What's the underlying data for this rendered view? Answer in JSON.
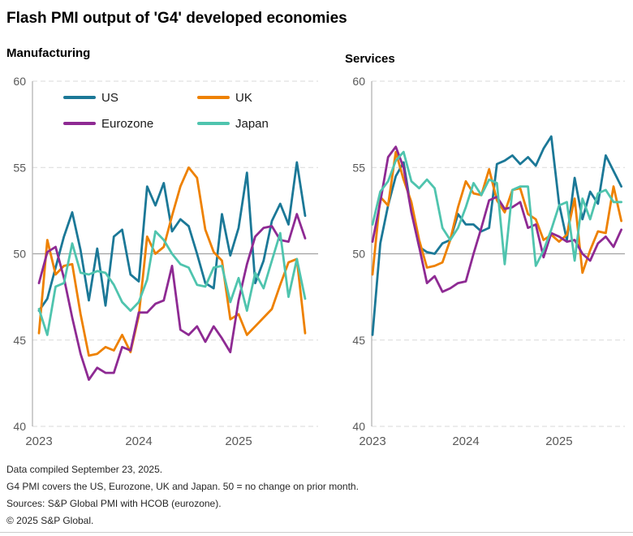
{
  "title": "Flash PMI output of 'G4' developed economies",
  "footer": {
    "line1": "Data compiled September 23, 2025.",
    "line2": "G4 PMI covers the US, Eurozone, UK and Japan. 50 = no change on prior month.",
    "line3": "Sources: S&P Global PMI with HCOB (eurozone).",
    "line4": "© 2025 S&P Global."
  },
  "chart_data": [
    {
      "type": "line",
      "title": "Manufacturing",
      "x_start": "2023-01",
      "frequency": "monthly",
      "x_tick_labels": [
        "2023",
        "2024",
        "2025"
      ],
      "x_tick_months": [
        0,
        12,
        24
      ],
      "ylim": [
        40,
        60
      ],
      "y_ticks": [
        60,
        55,
        50,
        45,
        40
      ],
      "baseline": 50,
      "grid": "dashed-horizontal",
      "legend_position": "top-inside",
      "series": [
        {
          "name": "US",
          "color": "#1b7897",
          "values": [
            46.7,
            47.4,
            49.2,
            51.0,
            52.4,
            50.2,
            47.3,
            50.3,
            47.0,
            51.0,
            51.4,
            48.8,
            48.4,
            53.9,
            52.8,
            54.1,
            51.3,
            52.0,
            51.6,
            50.0,
            48.3,
            48.0,
            52.3,
            49.9,
            51.5,
            54.7,
            48.3,
            49.6,
            51.9,
            52.9,
            51.7,
            55.3,
            52.2
          ]
        },
        {
          "name": "UK",
          "color": "#ee8100",
          "values": [
            45.4,
            50.8,
            48.8,
            49.3,
            49.4,
            46.5,
            44.1,
            44.2,
            44.6,
            44.4,
            45.3,
            44.3,
            46.4,
            51.0,
            50.0,
            50.4,
            52.2,
            53.9,
            55.0,
            54.4,
            51.4,
            50.1,
            49.6,
            46.2,
            46.5,
            45.3,
            45.8,
            46.3,
            46.8,
            48.2,
            49.5,
            49.7,
            45.4
          ]
        },
        {
          "name": "Eurozone",
          "color": "#8e2a93",
          "values": [
            48.3,
            50.1,
            50.4,
            48.6,
            46.3,
            44.2,
            42.7,
            43.4,
            43.1,
            43.1,
            44.6,
            44.4,
            46.6,
            46.6,
            47.1,
            47.3,
            49.3,
            45.6,
            45.3,
            45.8,
            44.9,
            45.8,
            45.1,
            44.3,
            47.3,
            49.4,
            51.0,
            51.5,
            51.6,
            50.8,
            50.7,
            52.3,
            50.9
          ]
        },
        {
          "name": "Japan",
          "color": "#4fc4ae",
          "values": [
            46.8,
            45.3,
            48.1,
            48.3,
            50.6,
            48.9,
            48.8,
            49.0,
            48.9,
            48.2,
            47.2,
            46.7,
            47.2,
            48.5,
            51.3,
            50.8,
            50.0,
            49.4,
            49.2,
            48.2,
            48.1,
            49.2,
            49.3,
            47.2,
            48.6,
            46.7,
            48.9,
            48.0,
            49.6,
            51.2,
            47.5,
            49.7,
            47.4
          ]
        }
      ]
    },
    {
      "type": "line",
      "title": "Services",
      "x_start": "2023-01",
      "frequency": "monthly",
      "x_tick_labels": [
        "2023",
        "2024",
        "2025"
      ],
      "x_tick_months": [
        0,
        12,
        24
      ],
      "ylim": [
        40,
        60
      ],
      "y_ticks": [
        60,
        55,
        50,
        45,
        40
      ],
      "baseline": 50,
      "grid": "dashed-horizontal",
      "legend_position": "none",
      "series": [
        {
          "name": "US",
          "color": "#1b7897",
          "values": [
            45.3,
            50.6,
            52.8,
            54.5,
            55.3,
            52.5,
            50.4,
            50.1,
            50.0,
            50.6,
            50.8,
            52.3,
            51.7,
            51.7,
            51.3,
            51.5,
            55.2,
            55.4,
            55.7,
            55.2,
            55.6,
            55.1,
            56.1,
            56.8,
            52.9,
            50.8,
            54.4,
            52.0,
            53.6,
            52.9,
            55.7,
            54.8,
            53.9
          ]
        },
        {
          "name": "UK",
          "color": "#ee8100",
          "values": [
            48.8,
            53.3,
            52.8,
            55.9,
            54.3,
            53.0,
            50.8,
            49.2,
            49.3,
            49.5,
            50.8,
            52.7,
            54.2,
            53.5,
            53.4,
            54.9,
            53.1,
            52.4,
            53.7,
            53.8,
            52.3,
            52.0,
            50.8,
            51.1,
            50.7,
            51.1,
            53.2,
            48.9,
            50.2,
            51.3,
            51.2,
            53.9,
            51.9
          ]
        },
        {
          "name": "Eurozone",
          "color": "#8e2a93",
          "values": [
            50.7,
            53.0,
            55.6,
            56.2,
            55.0,
            52.4,
            50.4,
            48.3,
            48.7,
            47.8,
            48.0,
            48.3,
            48.4,
            50.0,
            51.5,
            53.1,
            53.3,
            52.6,
            52.7,
            53.0,
            51.5,
            51.7,
            49.8,
            51.2,
            51.0,
            50.7,
            50.8,
            50.0,
            49.6,
            50.6,
            51.0,
            50.4,
            51.4
          ]
        },
        {
          "name": "Japan",
          "color": "#4fc4ae",
          "values": [
            51.7,
            53.6,
            54.2,
            55.4,
            55.9,
            54.2,
            53.8,
            54.3,
            53.8,
            51.5,
            50.8,
            51.5,
            52.7,
            54.1,
            53.4,
            54.3,
            54.1,
            49.4,
            53.7,
            53.9,
            53.9,
            49.3,
            50.2,
            51.4,
            52.8,
            53.0,
            49.6,
            53.2,
            52.0,
            53.5,
            53.7,
            53.0,
            53.0
          ]
        }
      ]
    }
  ]
}
